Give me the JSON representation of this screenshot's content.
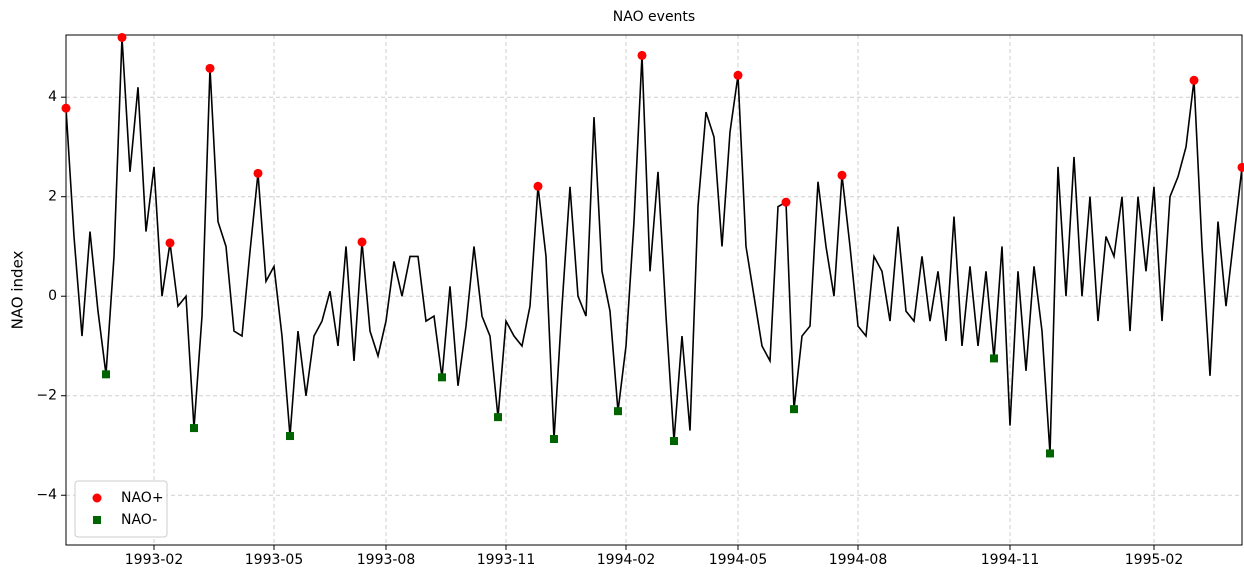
{
  "chart_data": {
    "type": "line",
    "title": "NAO events",
    "ylabel": "NAO index",
    "categories": [
      null,
      null,
      null,
      null,
      null,
      null,
      null,
      null,
      null,
      null,
      null,
      "1993-02",
      null,
      null,
      null,
      null,
      null,
      null,
      null,
      null,
      null,
      null,
      null,
      null,
      null,
      null,
      "1993-05",
      null,
      null,
      null,
      null,
      null,
      null,
      null,
      null,
      null,
      null,
      null,
      null,
      null,
      "1993-08",
      null,
      null,
      null,
      null,
      null,
      null,
      null,
      null,
      null,
      null,
      null,
      null,
      null,
      null,
      "1993-11",
      null,
      null,
      null,
      null,
      null,
      null,
      null,
      null,
      null,
      null,
      null,
      null,
      null,
      null,
      "1994-02",
      null,
      null,
      null,
      null,
      null,
      null,
      null,
      null,
      null,
      null,
      null,
      null,
      null,
      "1994-05",
      null,
      null,
      null,
      null,
      null,
      null,
      null,
      null,
      null,
      null,
      null,
      null,
      null,
      null,
      "1994-08",
      null,
      null,
      null,
      null,
      null,
      null,
      null,
      null,
      null,
      null,
      null,
      null,
      null,
      null,
      null,
      null,
      null,
      null,
      "1994-11",
      null,
      null,
      null,
      null,
      null,
      null,
      null,
      null,
      null,
      null,
      null,
      null,
      null,
      null,
      null,
      null,
      null,
      "1995-02",
      null,
      null,
      null,
      null,
      null,
      null,
      null,
      null,
      null,
      null,
      null
    ],
    "series": [
      {
        "color": "#000000",
        "values": [
          3.78,
          1.2,
          -0.8,
          1.3,
          -0.3,
          -1.57,
          0.8,
          5.2,
          2.5,
          4.2,
          1.3,
          2.6,
          0.0,
          1.07,
          -0.2,
          0.0,
          -2.65,
          -0.4,
          4.58,
          1.5,
          1.0,
          -0.7,
          -0.8,
          0.9,
          2.47,
          0.3,
          0.6,
          -0.8,
          -2.81,
          -0.7,
          -2.0,
          -0.8,
          -0.5,
          0.1,
          -1.0,
          1.0,
          -1.3,
          1.09,
          -0.7,
          -1.2,
          -0.5,
          0.7,
          0.0,
          0.8,
          0.8,
          -0.5,
          -0.4,
          -1.63,
          0.2,
          -1.8,
          -0.6,
          1.0,
          -0.4,
          -0.8,
          -2.43,
          -0.5,
          -0.8,
          -1.0,
          -0.2,
          2.21,
          0.8,
          -2.87,
          -0.2,
          2.2,
          0.0,
          -0.4,
          3.6,
          0.5,
          -0.3,
          -2.31,
          -1.0,
          1.5,
          4.84,
          0.5,
          2.5,
          -0.4,
          -2.91,
          -0.8,
          -2.7,
          1.8,
          3.7,
          3.2,
          1.0,
          3.3,
          4.44,
          1.0,
          0.0,
          -1.0,
          -1.3,
          1.8,
          1.89,
          -2.27,
          -0.8,
          -0.6,
          2.3,
          1.0,
          0.0,
          2.43,
          1.0,
          -0.6,
          -0.8,
          0.8,
          0.5,
          -0.5,
          1.4,
          -0.3,
          -0.5,
          0.8,
          -0.5,
          0.5,
          -0.9,
          1.6,
          -1.0,
          0.6,
          -1.0,
          0.5,
          -1.25,
          1.0,
          -2.6,
          0.5,
          -1.5,
          0.6,
          -0.7,
          -3.16,
          2.6,
          0.0,
          2.8,
          0.0,
          2.0,
          -0.5,
          1.2,
          0.8,
          2.0,
          -0.7,
          2.0,
          0.5,
          2.2,
          -0.5,
          2.0,
          2.4,
          3.0,
          4.34,
          1.0,
          -1.6,
          1.5,
          -0.2,
          1.2,
          2.59
        ]
      },
      {
        "name": "NAO+",
        "color": "#ff0000",
        "marker": "circle",
        "values": [
          3.78,
          null,
          null,
          null,
          null,
          null,
          null,
          5.2,
          null,
          null,
          null,
          null,
          null,
          1.07,
          null,
          null,
          null,
          null,
          4.58,
          null,
          null,
          null,
          null,
          null,
          2.47,
          null,
          null,
          null,
          null,
          null,
          null,
          null,
          null,
          null,
          null,
          null,
          null,
          1.09,
          null,
          null,
          null,
          null,
          null,
          null,
          null,
          null,
          null,
          null,
          null,
          null,
          null,
          null,
          null,
          null,
          null,
          null,
          null,
          null,
          null,
          2.21,
          null,
          null,
          null,
          null,
          null,
          null,
          null,
          null,
          null,
          null,
          null,
          null,
          4.84,
          null,
          null,
          null,
          null,
          null,
          null,
          null,
          null,
          null,
          null,
          null,
          4.44,
          null,
          null,
          null,
          null,
          null,
          1.89,
          null,
          null,
          null,
          null,
          null,
          null,
          2.43,
          null,
          null,
          null,
          null,
          null,
          null,
          null,
          null,
          null,
          null,
          null,
          null,
          null,
          null,
          null,
          null,
          null,
          null,
          null,
          null,
          null,
          null,
          null,
          null,
          null,
          null,
          null,
          null,
          null,
          null,
          null,
          null,
          null,
          null,
          null,
          null,
          null,
          null,
          null,
          null,
          null,
          null,
          null,
          4.34,
          null,
          null,
          null,
          null,
          null,
          2.59
        ]
      },
      {
        "name": "NAO-",
        "color": "#006400",
        "marker": "square",
        "values": [
          null,
          null,
          null,
          null,
          null,
          -1.57,
          null,
          null,
          null,
          null,
          null,
          null,
          null,
          null,
          null,
          null,
          -2.65,
          null,
          null,
          null,
          null,
          null,
          null,
          null,
          null,
          null,
          null,
          null,
          -2.81,
          null,
          null,
          null,
          null,
          null,
          null,
          null,
          null,
          null,
          null,
          null,
          null,
          null,
          null,
          null,
          null,
          null,
          null,
          -1.63,
          null,
          null,
          null,
          null,
          null,
          null,
          -2.43,
          null,
          null,
          null,
          null,
          null,
          null,
          -2.87,
          null,
          null,
          null,
          null,
          null,
          null,
          null,
          -2.31,
          null,
          null,
          null,
          null,
          null,
          null,
          -2.91,
          null,
          null,
          null,
          null,
          null,
          null,
          null,
          null,
          null,
          null,
          null,
          null,
          null,
          null,
          -2.27,
          null,
          null,
          null,
          null,
          null,
          null,
          null,
          null,
          null,
          null,
          null,
          null,
          null,
          null,
          null,
          null,
          null,
          null,
          null,
          null,
          null,
          null,
          null,
          null,
          -1.25,
          null,
          null,
          null,
          null,
          null,
          null,
          -3.16,
          null,
          null,
          null,
          null,
          null,
          null,
          null,
          null,
          null,
          null,
          null,
          null,
          null,
          null,
          null,
          null,
          null,
          null,
          null,
          null,
          null,
          null,
          null,
          null
        ]
      }
    ],
    "ylim": [
      -5,
      5.25
    ],
    "yticks": [
      {
        "value": -4,
        "label": "−4"
      },
      {
        "value": -2,
        "label": "−2"
      },
      0,
      2,
      4
    ],
    "grid": true,
    "legend": "lower left"
  }
}
